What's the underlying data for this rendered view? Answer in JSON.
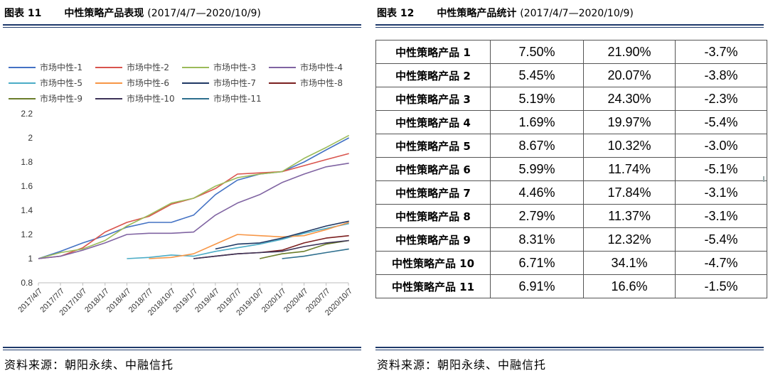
{
  "left_panel": {
    "figure_label": "图表 11",
    "title": "中性策略产品表现",
    "period": "(2017/4/7—2020/10/9)",
    "source": "资料来源：朝阳永续、中融信托"
  },
  "right_panel": {
    "figure_label": "图表 12",
    "title": "中性策略产品统计",
    "period": "(2017/4/7—2020/10/9)",
    "source": "资料来源：朝阳永续、中融信托"
  },
  "table": {
    "rows": [
      [
        "中性策略产品 1",
        "7.50%",
        "21.90%",
        "-3.7%"
      ],
      [
        "中性策略产品 2",
        "5.45%",
        "20.07%",
        "-3.8%"
      ],
      [
        "中性策略产品 3",
        "5.19%",
        "24.30%",
        "-2.3%"
      ],
      [
        "中性策略产品 4",
        "1.69%",
        "19.97%",
        "-5.4%"
      ],
      [
        "中性策略产品 5",
        "8.67%",
        "10.32%",
        "-3.0%"
      ],
      [
        "中性策略产品 6",
        "5.99%",
        "11.74%",
        "-5.1%"
      ],
      [
        "中性策略产品 7",
        "4.46%",
        "17.84%",
        "-3.1%"
      ],
      [
        "中性策略产品 8",
        "2.79%",
        "11.37%",
        "-3.1%"
      ],
      [
        "中性策略产品 9",
        "8.31%",
        "12.32%",
        "-5.4%"
      ],
      [
        "中性策略产品 10",
        "6.71%",
        "34.1%",
        "-4.7%"
      ],
      [
        "中性策略产品 11",
        "6.91%",
        "16.6%",
        "-1.5%"
      ]
    ]
  },
  "chart_data": {
    "type": "line",
    "title": "",
    "xlabel": "",
    "ylabel": "",
    "x_axis": "date",
    "x_ticks": [
      "2017/4/7",
      "2017/7/7",
      "2017/10/7",
      "2018/1/7",
      "2018/4/7",
      "2018/7/7",
      "2018/10/7",
      "2019/1/7",
      "2019/4/7",
      "2019/7/7",
      "2019/10/7",
      "2020/1/7",
      "2020/4/7",
      "2020/7/7",
      "2020/10/7"
    ],
    "ylim": [
      0.8,
      2.2
    ],
    "y_ticks": [
      0.8,
      1,
      1.2,
      1.4,
      1.6,
      1.8,
      2,
      2.2
    ],
    "grid": false,
    "legend_position": "top",
    "series": [
      {
        "name": "市场中性-1",
        "color": "#4472c4",
        "points": [
          [
            "2017/4/7",
            1.0
          ],
          [
            "2017/7/7",
            1.06
          ],
          [
            "2017/10/7",
            1.13
          ],
          [
            "2018/1/7",
            1.19
          ],
          [
            "2018/4/7",
            1.26
          ],
          [
            "2018/7/7",
            1.3
          ],
          [
            "2018/10/7",
            1.3
          ],
          [
            "2019/1/7",
            1.36
          ],
          [
            "2019/4/7",
            1.53
          ],
          [
            "2019/7/7",
            1.65
          ],
          [
            "2019/10/7",
            1.7
          ],
          [
            "2020/1/7",
            1.72
          ],
          [
            "2020/4/7",
            1.8
          ],
          [
            "2020/7/7",
            1.9
          ],
          [
            "2020/10/9",
            2.0
          ]
        ]
      },
      {
        "name": "市场中性-2",
        "color": "#d9544d",
        "points": [
          [
            "2017/4/7",
            1.0
          ],
          [
            "2017/7/7",
            1.02
          ],
          [
            "2017/10/7",
            1.09
          ],
          [
            "2018/1/7",
            1.22
          ],
          [
            "2018/4/7",
            1.3
          ],
          [
            "2018/7/7",
            1.35
          ],
          [
            "2018/10/7",
            1.45
          ],
          [
            "2019/1/7",
            1.5
          ],
          [
            "2019/4/7",
            1.58
          ],
          [
            "2019/7/7",
            1.7
          ],
          [
            "2019/10/7",
            1.71
          ],
          [
            "2020/1/7",
            1.72
          ],
          [
            "2020/4/7",
            1.77
          ],
          [
            "2020/7/7",
            1.82
          ],
          [
            "2020/10/9",
            1.87
          ]
        ]
      },
      {
        "name": "市场中性-3",
        "color": "#9bbb59",
        "points": [
          [
            "2017/4/7",
            1.0
          ],
          [
            "2017/7/7",
            1.05
          ],
          [
            "2017/10/7",
            1.08
          ],
          [
            "2018/1/7",
            1.15
          ],
          [
            "2018/4/7",
            1.27
          ],
          [
            "2018/7/7",
            1.36
          ],
          [
            "2018/10/7",
            1.46
          ],
          [
            "2019/1/7",
            1.5
          ],
          [
            "2019/4/7",
            1.6
          ],
          [
            "2019/7/7",
            1.67
          ],
          [
            "2019/10/7",
            1.7
          ],
          [
            "2020/1/7",
            1.72
          ],
          [
            "2020/4/7",
            1.83
          ],
          [
            "2020/7/7",
            1.92
          ],
          [
            "2020/10/9",
            2.02
          ]
        ]
      },
      {
        "name": "市场中性-4",
        "color": "#8064a2",
        "points": [
          [
            "2017/4/7",
            1.0
          ],
          [
            "2017/7/7",
            1.02
          ],
          [
            "2017/10/7",
            1.07
          ],
          [
            "2018/1/7",
            1.13
          ],
          [
            "2018/4/7",
            1.2
          ],
          [
            "2018/7/7",
            1.21
          ],
          [
            "2018/10/7",
            1.21
          ],
          [
            "2019/1/7",
            1.22
          ],
          [
            "2019/4/7",
            1.36
          ],
          [
            "2019/7/7",
            1.46
          ],
          [
            "2019/10/7",
            1.53
          ],
          [
            "2020/1/7",
            1.63
          ],
          [
            "2020/4/7",
            1.7
          ],
          [
            "2020/7/7",
            1.76
          ],
          [
            "2020/10/9",
            1.79
          ]
        ]
      },
      {
        "name": "市场中性-5",
        "color": "#4bacc6",
        "points": [
          [
            "2018/4/7",
            1.0
          ],
          [
            "2018/7/7",
            1.01
          ],
          [
            "2018/10/7",
            1.03
          ],
          [
            "2019/1/7",
            1.02
          ],
          [
            "2019/4/7",
            1.06
          ],
          [
            "2019/7/7",
            1.09
          ],
          [
            "2019/10/7",
            1.12
          ],
          [
            "2020/1/7",
            1.16
          ],
          [
            "2020/4/7",
            1.21
          ],
          [
            "2020/7/7",
            1.25
          ],
          [
            "2020/10/9",
            1.29
          ]
        ]
      },
      {
        "name": "市场中性-6",
        "color": "#f79646",
        "points": [
          [
            "2018/7/7",
            1.0
          ],
          [
            "2018/10/7",
            1.01
          ],
          [
            "2019/1/7",
            1.04
          ],
          [
            "2019/4/7",
            1.12
          ],
          [
            "2019/7/7",
            1.2
          ],
          [
            "2019/10/7",
            1.19
          ],
          [
            "2020/1/7",
            1.18
          ],
          [
            "2020/4/7",
            1.19
          ],
          [
            "2020/7/7",
            1.24
          ],
          [
            "2020/10/9",
            1.3
          ]
        ]
      },
      {
        "name": "市场中性-7",
        "color": "#1f3864",
        "points": [
          [
            "2019/4/7",
            1.08
          ],
          [
            "2019/7/7",
            1.12
          ],
          [
            "2019/10/7",
            1.13
          ],
          [
            "2020/1/7",
            1.17
          ],
          [
            "2020/4/7",
            1.22
          ],
          [
            "2020/7/7",
            1.27
          ],
          [
            "2020/10/9",
            1.31
          ]
        ]
      },
      {
        "name": "市场中性-8",
        "color": "#7b1f1f",
        "points": [
          [
            "2019/1/7",
            1.0
          ],
          [
            "2019/4/7",
            1.02
          ],
          [
            "2019/7/7",
            1.04
          ],
          [
            "2019/10/7",
            1.05
          ],
          [
            "2020/1/7",
            1.07
          ],
          [
            "2020/4/7",
            1.13
          ],
          [
            "2020/7/7",
            1.17
          ],
          [
            "2020/10/9",
            1.19
          ]
        ]
      },
      {
        "name": "市场中性-9",
        "color": "#6b7d2a",
        "points": [
          [
            "2019/10/7",
            1.0
          ],
          [
            "2020/1/7",
            1.04
          ],
          [
            "2020/4/7",
            1.06
          ],
          [
            "2020/7/7",
            1.12
          ],
          [
            "2020/10/9",
            1.15
          ]
        ]
      },
      {
        "name": "市场中性-10",
        "color": "#3d3357",
        "points": [
          [
            "2019/1/7",
            1.0
          ],
          [
            "2019/4/7",
            1.02
          ],
          [
            "2019/7/7",
            1.04
          ],
          [
            "2019/10/7",
            1.05
          ],
          [
            "2020/1/7",
            1.06
          ],
          [
            "2020/4/7",
            1.1
          ],
          [
            "2020/7/7",
            1.13
          ],
          [
            "2020/10/9",
            1.15
          ]
        ]
      },
      {
        "name": "市场中性-11",
        "color": "#2e6f8e",
        "points": [
          [
            "2020/1/7",
            1.0
          ],
          [
            "2020/4/7",
            1.02
          ],
          [
            "2020/7/7",
            1.05
          ],
          [
            "2020/10/9",
            1.08
          ]
        ]
      }
    ]
  }
}
